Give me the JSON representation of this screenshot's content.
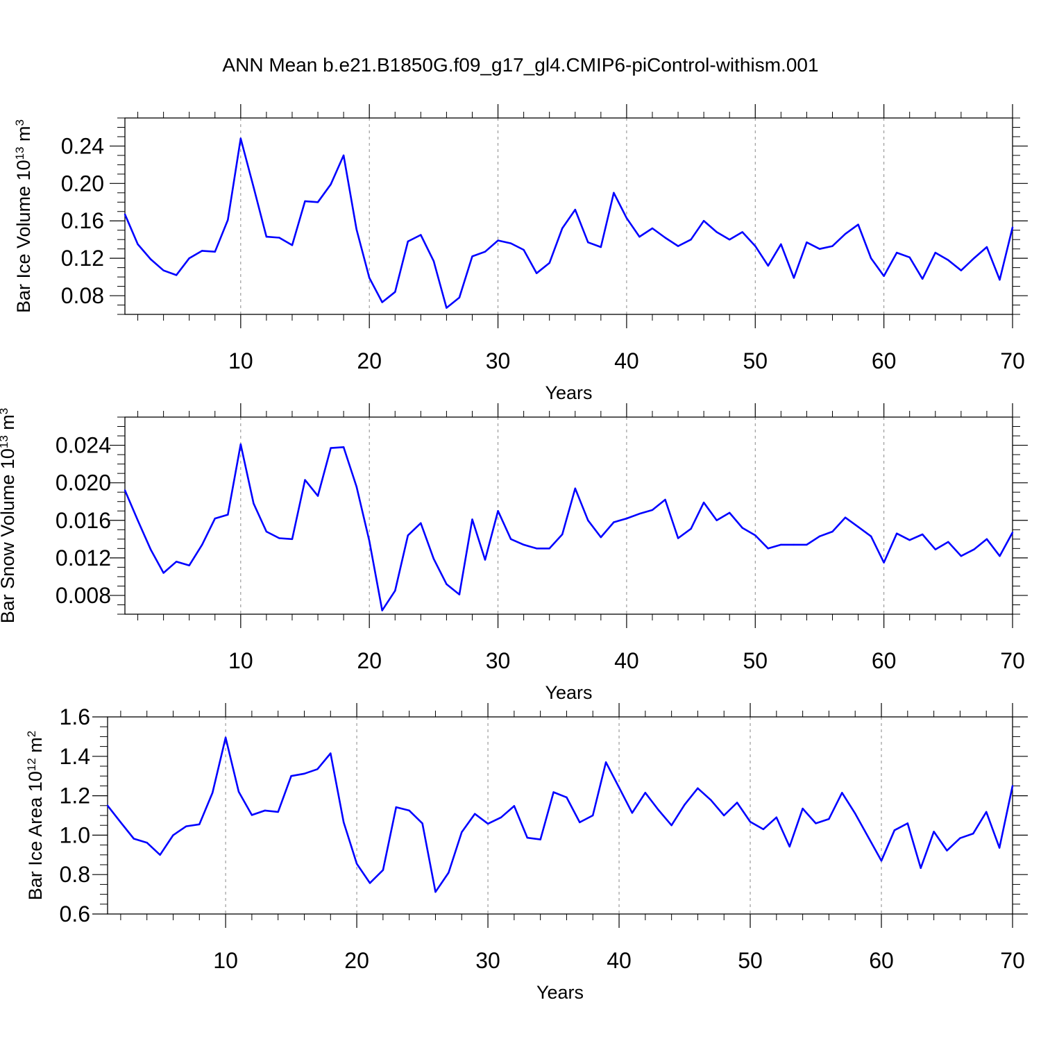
{
  "title": "ANN Mean b.e21.B1850G.f09_g17_gl4.CMIP6-piControl-withism.001",
  "line_color": "#0000ff",
  "chart_data": [
    {
      "type": "line",
      "name": "ice-volume",
      "xlabel": "Years",
      "ylabel_main": "Bar Ice Volume 10",
      "ylabel_exp": "13",
      "ylabel_unit": "m",
      "ylabel_unit_exp": "3",
      "xlim": [
        1,
        70
      ],
      "ylim": [
        0.06,
        0.27
      ],
      "xticks": [
        10,
        20,
        30,
        40,
        50,
        60,
        70
      ],
      "xticklabels": [
        "10",
        "20",
        "30",
        "40",
        "50",
        "60",
        "70"
      ],
      "yticks": [
        0.08,
        0.12,
        0.16,
        0.2,
        0.24
      ],
      "yticklabels": [
        "0.08",
        "0.12",
        "0.16",
        "0.20",
        "0.24"
      ],
      "yminor": 0.01,
      "x": [
        1,
        2,
        3,
        4,
        5,
        6,
        7,
        8,
        9,
        10,
        11,
        12,
        13,
        14,
        15,
        16,
        17,
        18,
        19,
        20,
        21,
        22,
        23,
        24,
        25,
        26,
        27,
        28,
        29,
        30,
        31,
        32,
        33,
        34,
        35,
        36,
        37,
        38,
        39,
        40,
        41,
        42,
        43,
        44,
        45,
        46,
        47,
        48,
        49,
        50,
        51,
        52,
        53,
        54,
        55,
        56,
        57,
        58,
        59,
        60,
        61,
        62,
        63,
        64,
        65,
        66,
        67,
        68,
        69,
        70
      ],
      "values": [
        0.167,
        0.135,
        0.119,
        0.107,
        0.102,
        0.12,
        0.128,
        0.127,
        0.161,
        0.248,
        0.196,
        0.143,
        0.142,
        0.134,
        0.181,
        0.18,
        0.199,
        0.23,
        0.151,
        0.099,
        0.073,
        0.084,
        0.138,
        0.145,
        0.117,
        0.067,
        0.078,
        0.122,
        0.127,
        0.139,
        0.136,
        0.129,
        0.104,
        0.115,
        0.152,
        0.172,
        0.137,
        0.132,
        0.19,
        0.163,
        0.143,
        0.152,
        0.142,
        0.133,
        0.14,
        0.16,
        0.148,
        0.14,
        0.148,
        0.133,
        0.112,
        0.135,
        0.099,
        0.137,
        0.13,
        0.133,
        0.146,
        0.156,
        0.12,
        0.101,
        0.126,
        0.121,
        0.098,
        0.126,
        0.118,
        0.107,
        0.12,
        0.132,
        0.097,
        0.153
      ]
    },
    {
      "type": "line",
      "name": "snow-volume",
      "xlabel": "Years",
      "ylabel_main": "Bar Snow Volume 10",
      "ylabel_exp": "13",
      "ylabel_unit": "m",
      "ylabel_unit_exp": "3",
      "xlim": [
        1,
        70
      ],
      "ylim": [
        0.006,
        0.027
      ],
      "xticks": [
        10,
        20,
        30,
        40,
        50,
        60,
        70
      ],
      "xticklabels": [
        "10",
        "20",
        "30",
        "40",
        "50",
        "60",
        "70"
      ],
      "yticks": [
        0.008,
        0.012,
        0.016,
        0.02,
        0.024
      ],
      "yticklabels": [
        "0.008",
        "0.012",
        "0.016",
        "0.020",
        "0.024"
      ],
      "yminor": 0.001,
      "x": [
        1,
        2,
        3,
        4,
        5,
        6,
        7,
        8,
        9,
        10,
        11,
        12,
        13,
        14,
        15,
        16,
        17,
        18,
        19,
        20,
        21,
        22,
        23,
        24,
        25,
        26,
        27,
        28,
        29,
        30,
        31,
        32,
        33,
        34,
        35,
        36,
        37,
        38,
        39,
        40,
        41,
        42,
        43,
        44,
        45,
        46,
        47,
        48,
        49,
        50,
        51,
        52,
        53,
        54,
        55,
        56,
        57,
        58,
        59,
        60,
        61,
        62,
        63,
        64,
        65,
        66,
        67,
        68,
        69,
        70
      ],
      "values": [
        0.0192,
        0.016,
        0.0129,
        0.0104,
        0.0116,
        0.0112,
        0.0134,
        0.0162,
        0.0166,
        0.0241,
        0.0178,
        0.0148,
        0.0141,
        0.014,
        0.0203,
        0.0186,
        0.0237,
        0.0238,
        0.0196,
        0.0138,
        0.0064,
        0.0085,
        0.0144,
        0.0157,
        0.0119,
        0.0092,
        0.0081,
        0.0161,
        0.0118,
        0.017,
        0.014,
        0.0134,
        0.013,
        0.013,
        0.0145,
        0.0194,
        0.016,
        0.0142,
        0.0158,
        0.0162,
        0.0167,
        0.0171,
        0.0182,
        0.0141,
        0.0151,
        0.0179,
        0.016,
        0.0168,
        0.0152,
        0.0144,
        0.013,
        0.0134,
        0.0134,
        0.0134,
        0.0143,
        0.0148,
        0.0163,
        0.0153,
        0.0143,
        0.0115,
        0.0146,
        0.0139,
        0.0145,
        0.0129,
        0.0137,
        0.0122,
        0.0129,
        0.014,
        0.0122,
        0.0147
      ]
    },
    {
      "type": "line",
      "name": "ice-area",
      "xlabel": "Years",
      "ylabel_main": "Bar Ice Area 10",
      "ylabel_exp": "12",
      "ylabel_unit": "m",
      "ylabel_unit_exp": "2",
      "xlim": [
        1,
        70
      ],
      "ylim": [
        0.6,
        1.6
      ],
      "xticks": [
        10,
        20,
        30,
        40,
        50,
        60,
        70
      ],
      "xticklabels": [
        "10",
        "20",
        "30",
        "40",
        "50",
        "60",
        "70"
      ],
      "yticks": [
        0.6,
        0.8,
        1.0,
        1.2,
        1.4,
        1.6
      ],
      "yticklabels": [
        "0.6",
        "0.8",
        "1.0",
        "1.2",
        "1.4",
        "1.6"
      ],
      "yminor": 0.05,
      "x": [
        1,
        2,
        3,
        4,
        5,
        6,
        7,
        8,
        9,
        10,
        11,
        12,
        13,
        14,
        15,
        16,
        17,
        18,
        19,
        20,
        21,
        22,
        23,
        24,
        25,
        26,
        27,
        28,
        29,
        30,
        31,
        32,
        33,
        34,
        35,
        36,
        37,
        38,
        39,
        40,
        41,
        42,
        43,
        44,
        45,
        46,
        47,
        48,
        49,
        50,
        51,
        52,
        53,
        54,
        55,
        56,
        57,
        58,
        59,
        60,
        61,
        62,
        63,
        64,
        65,
        66,
        67,
        68,
        69,
        70
      ],
      "values": [
        1.15,
        1.065,
        0.982,
        0.962,
        0.9,
        1.0,
        1.045,
        1.055,
        1.215,
        1.495,
        1.22,
        1.102,
        1.125,
        1.118,
        1.3,
        1.312,
        1.335,
        1.415,
        1.065,
        0.855,
        0.757,
        0.823,
        1.142,
        1.125,
        1.06,
        0.712,
        0.81,
        1.015,
        1.108,
        1.058,
        1.09,
        1.148,
        0.987,
        0.978,
        1.218,
        1.192,
        1.065,
        1.1,
        1.37,
        1.242,
        1.113,
        1.215,
        1.128,
        1.05,
        1.155,
        1.238,
        1.178,
        1.1,
        1.165,
        1.068,
        1.03,
        1.09,
        0.942,
        1.135,
        1.06,
        1.082,
        1.215,
        1.11,
        0.99,
        0.87,
        1.025,
        1.06,
        0.833,
        1.018,
        0.922,
        0.985,
        1.008,
        1.118,
        0.936,
        1.25
      ]
    }
  ]
}
